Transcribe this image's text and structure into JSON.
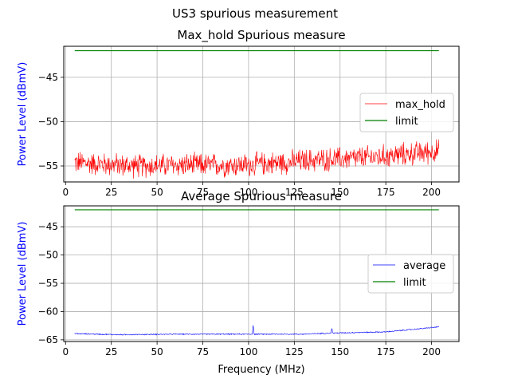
{
  "suptitle": "US3 spurious measurement",
  "chart_data": [
    {
      "type": "line",
      "title": "Max_hold Spurious measure",
      "xlabel": "",
      "ylabel": "Power Level (dBmV)",
      "xlim": [
        -1,
        215
      ],
      "ylim": [
        -56.8,
        -41.5
      ],
      "xticks": [
        0,
        25,
        50,
        75,
        100,
        125,
        150,
        175,
        200
      ],
      "yticks": [
        -55,
        -50,
        -45
      ],
      "grid": true,
      "legend": "center-right",
      "series": [
        {
          "name": "max_hold",
          "color": "#ff0000",
          "noisy": true,
          "noise_amplitude": 1.6,
          "x": [
            5,
            20,
            40,
            60,
            80,
            100,
            110,
            120,
            130,
            140,
            150,
            160,
            170,
            180,
            190,
            200,
            204
          ],
          "y": [
            -54.6,
            -54.8,
            -55.0,
            -54.9,
            -54.9,
            -54.9,
            -54.7,
            -54.6,
            -54.4,
            -54.3,
            -54.2,
            -54.1,
            -54.0,
            -53.8,
            -53.6,
            -53.4,
            -53.3
          ]
        },
        {
          "name": "limit",
          "color": "#008000",
          "x": [
            5,
            204
          ],
          "y": [
            -42,
            -42
          ]
        }
      ]
    },
    {
      "type": "line",
      "title": "Average Spurious measure",
      "xlabel": "Frequency (MHz)",
      "ylabel": "Power Level (dBmV)",
      "xlim": [
        -1,
        215
      ],
      "ylim": [
        -65.3,
        -41.3
      ],
      "xticks": [
        0,
        25,
        50,
        75,
        100,
        125,
        150,
        175,
        200
      ],
      "yticks": [
        -65,
        -60,
        -55,
        -50,
        -45
      ],
      "grid": true,
      "legend": "center-right",
      "series": [
        {
          "name": "average",
          "color": "#0000ff",
          "noisy": true,
          "noise_amplitude": 0.12,
          "x": [
            5,
            30,
            60,
            100,
            102,
            102.5,
            103,
            130,
            145,
            145.5,
            146,
            160,
            175,
            185,
            195,
            204
          ],
          "y": [
            -63.9,
            -64.1,
            -64.0,
            -64.0,
            -64.0,
            -62.4,
            -64.0,
            -64.0,
            -63.8,
            -62.9,
            -63.8,
            -63.7,
            -63.6,
            -63.3,
            -63.0,
            -62.7
          ]
        },
        {
          "name": "limit",
          "color": "#008000",
          "x": [
            5,
            204
          ],
          "y": [
            -42,
            -42
          ]
        }
      ]
    }
  ]
}
